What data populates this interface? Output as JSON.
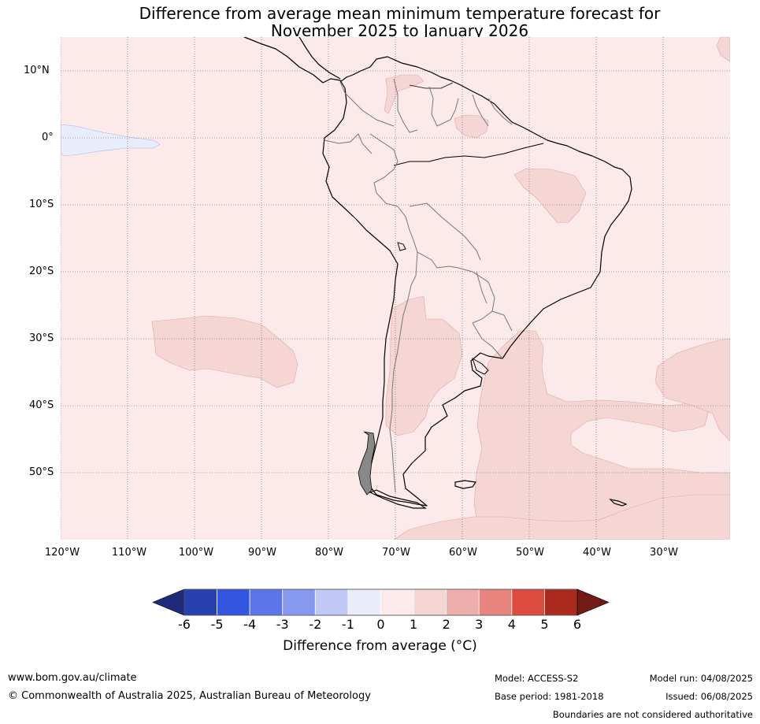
{
  "title_line1": "Difference from average mean minimum temperature forecast for",
  "title_line2": "November 2025 to January 2026",
  "map": {
    "region": "South America and surrounding oceans",
    "lat_labels": [
      "10°N",
      "0°",
      "10°S",
      "20°S",
      "30°S",
      "40°S",
      "50°S"
    ],
    "lon_labels": [
      "120°W",
      "110°W",
      "100°W",
      "90°W",
      "80°W",
      "70°W",
      "60°W",
      "50°W",
      "40°W",
      "30°W"
    ],
    "ocean_fill_color": "#fbeae9",
    "anomaly_colors": {
      "m1_0": "#e9edfb",
      "p0_1": "#fbeae9",
      "p1_2": "#f5d6d5"
    }
  },
  "colorbar": {
    "ticks": [
      "-6",
      "-5",
      "-4",
      "-3",
      "-2",
      "-1",
      "0",
      "1",
      "2",
      "3",
      "4",
      "5",
      "6"
    ],
    "colors": [
      "#1f2a7a",
      "#283fb0",
      "#3355e0",
      "#5c76e8",
      "#8798ef",
      "#c1c8f6",
      "#e9edfb",
      "#fbeae9",
      "#f5d6d5",
      "#edaeab",
      "#e8857f",
      "#dc4c3e",
      "#aa2a1e",
      "#741a16"
    ],
    "label": "Difference from average (°C)"
  },
  "footer": {
    "website": "www.bom.gov.au/climate",
    "copyright": "© Commonwealth of Australia 2025, Australian Bureau of Meteorology",
    "model": "Model: ACCESS-S2",
    "base_period": "Base period: 1981-2018",
    "model_run": "Model run: 04/08/2025",
    "issued": "Issued: 06/08/2025",
    "boundaries_note": "Boundaries are not considered authoritative"
  }
}
